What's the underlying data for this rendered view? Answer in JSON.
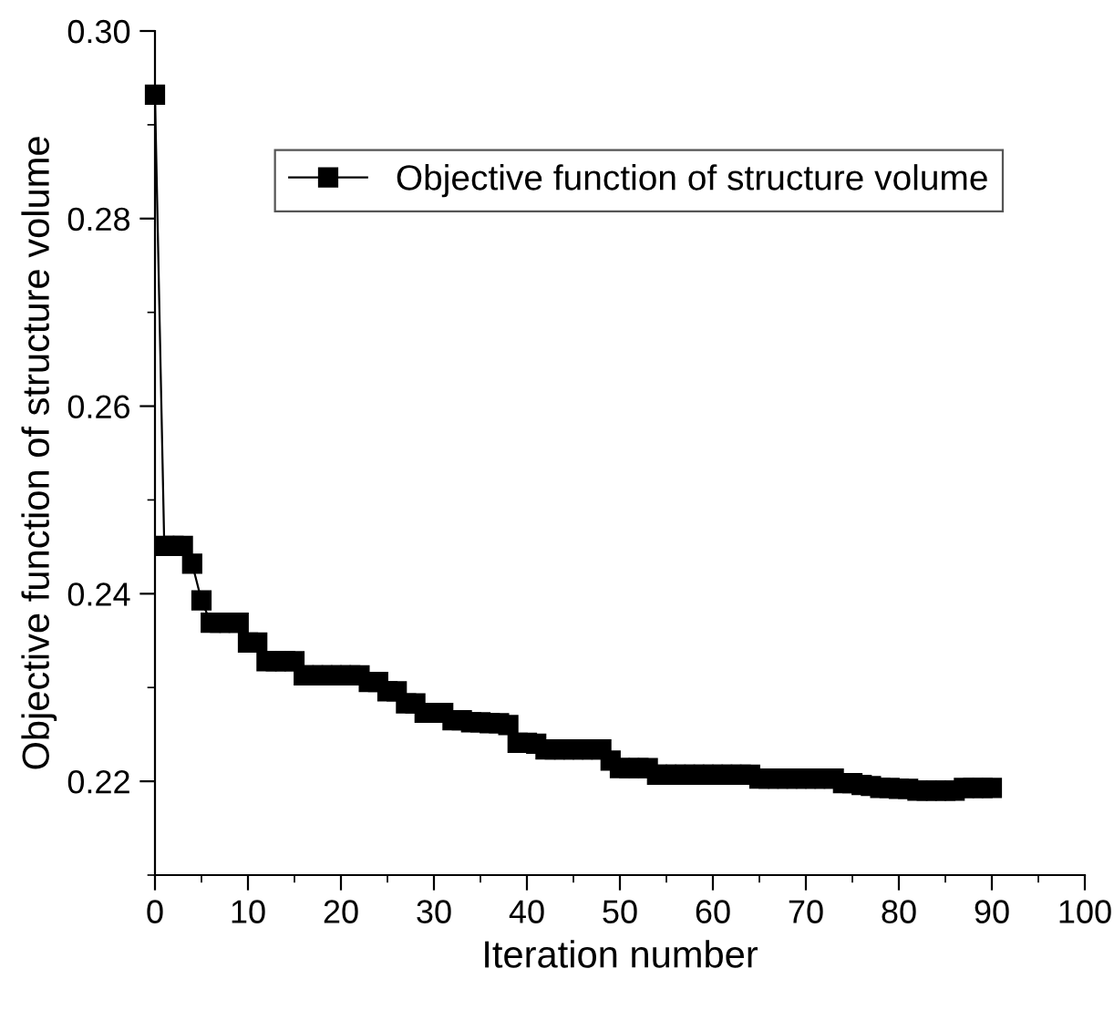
{
  "chart_data": {
    "type": "line",
    "xlabel": "Iteration number",
    "ylabel": "Objective function of structure volume",
    "x": [
      0,
      1,
      2,
      3,
      4,
      5,
      6,
      7,
      8,
      9,
      10,
      11,
      12,
      13,
      14,
      15,
      16,
      17,
      18,
      19,
      20,
      21,
      22,
      23,
      24,
      25,
      26,
      27,
      28,
      29,
      30,
      31,
      32,
      33,
      34,
      35,
      36,
      37,
      38,
      39,
      40,
      41,
      42,
      43,
      44,
      45,
      46,
      47,
      48,
      49,
      50,
      51,
      52,
      53,
      54,
      55,
      56,
      57,
      58,
      59,
      60,
      61,
      62,
      63,
      64,
      65,
      66,
      67,
      68,
      69,
      70,
      71,
      72,
      73,
      74,
      75,
      76,
      77,
      78,
      79,
      80,
      81,
      82,
      83,
      84,
      85,
      86,
      87,
      88,
      89,
      90
    ],
    "series": [
      {
        "name": "Objective function of structure volume",
        "color": "#000000",
        "values": [
          0.2932,
          0.2451,
          0.2451,
          0.2451,
          0.2432,
          0.2393,
          0.2369,
          0.2369,
          0.2369,
          0.2369,
          0.2348,
          0.2348,
          0.2328,
          0.2328,
          0.2328,
          0.2328,
          0.2313,
          0.2313,
          0.2313,
          0.2313,
          0.2313,
          0.2313,
          0.2313,
          0.2306,
          0.2306,
          0.2296,
          0.2296,
          0.2283,
          0.2283,
          0.2273,
          0.2273,
          0.2273,
          0.2265,
          0.2265,
          0.2263,
          0.2263,
          0.2262,
          0.2262,
          0.226,
          0.2241,
          0.2241,
          0.224,
          0.2234,
          0.2234,
          0.2234,
          0.2234,
          0.2234,
          0.2234,
          0.2234,
          0.2222,
          0.2214,
          0.2214,
          0.2214,
          0.2214,
          0.2207,
          0.2207,
          0.2207,
          0.2207,
          0.2207,
          0.2207,
          0.2207,
          0.2207,
          0.2207,
          0.2207,
          0.2207,
          0.2203,
          0.2203,
          0.2203,
          0.2203,
          0.2203,
          0.2203,
          0.2203,
          0.2203,
          0.2203,
          0.2198,
          0.2198,
          0.2196,
          0.2195,
          0.2193,
          0.2193,
          0.2192,
          0.2192,
          0.219,
          0.219,
          0.219,
          0.219,
          0.219,
          0.2193,
          0.2193,
          0.2193,
          0.2193
        ]
      }
    ],
    "xlim": [
      0,
      100
    ],
    "xticks": [
      0,
      10,
      20,
      30,
      40,
      50,
      60,
      70,
      80,
      90,
      100
    ],
    "ylim": [
      0.21,
      0.3
    ],
    "yticks": [
      {
        "value": 0.22,
        "label": "0.22"
      },
      {
        "value": 0.24,
        "label": "0.24"
      },
      {
        "value": 0.26,
        "label": "0.26"
      },
      {
        "value": 0.28,
        "label": "0.28"
      },
      {
        "value": 0.3,
        "label": "0.30"
      }
    ],
    "marker": "square",
    "line_style": "solid",
    "legend": "top",
    "grid": false
  }
}
